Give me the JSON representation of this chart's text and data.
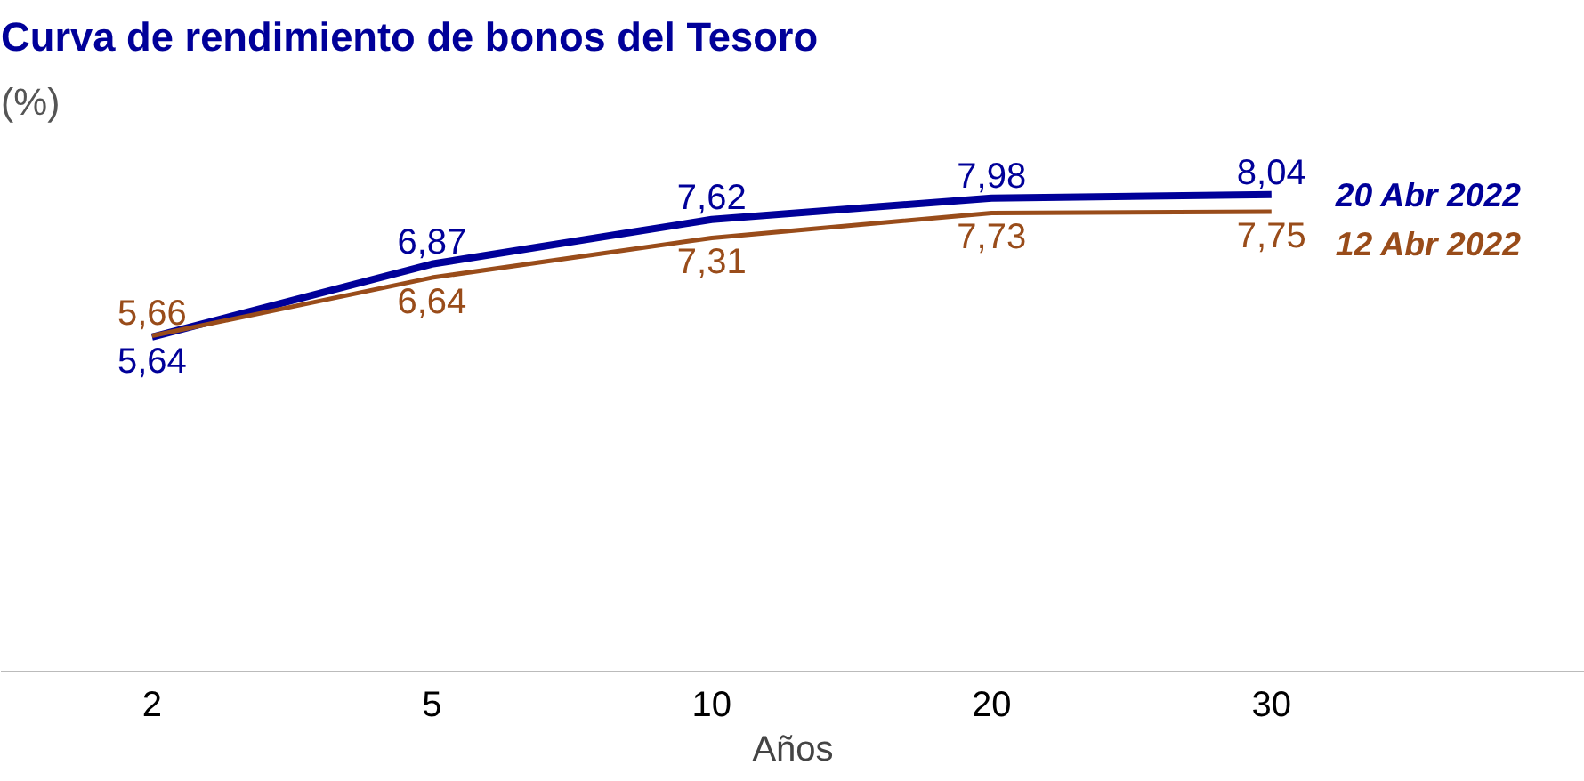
{
  "chart_data": {
    "type": "line",
    "title": "Curva de rendimiento de bonos del Tesoro",
    "subtitle": "(%)",
    "xlabel": "Años",
    "categories": [
      "2",
      "5",
      "10",
      "20",
      "30"
    ],
    "tick_labels": "x",
    "grid": false,
    "marker": "none",
    "line_style": "solid",
    "series": [
      {
        "name": "20 Abr 2022",
        "color": "#000099",
        "values": [
          5.64,
          6.87,
          7.62,
          7.98,
          8.04
        ],
        "value_labels": [
          "5,64",
          "6,87",
          "7,62",
          "7,98",
          "8,04"
        ]
      },
      {
        "name": "12 Abr 2022",
        "color": "#994c1a",
        "values": [
          5.66,
          6.64,
          7.31,
          7.73,
          7.75
        ],
        "value_labels": [
          "5,66",
          "6,64",
          "7,31",
          "7,73",
          "7,75"
        ]
      }
    ]
  }
}
